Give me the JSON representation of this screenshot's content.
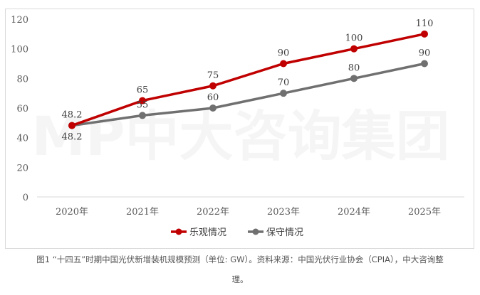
{
  "chart_data": {
    "type": "line",
    "categories": [
      "2020年",
      "2021年",
      "2022年",
      "2023年",
      "2024年",
      "2025年"
    ],
    "series": [
      {
        "name": "乐观情况",
        "color": "#c00000",
        "values": [
          48.2,
          65,
          75,
          90,
          100,
          110
        ]
      },
      {
        "name": "保守情况",
        "color": "#707070",
        "values": [
          48.2,
          55,
          60,
          70,
          80,
          90
        ]
      }
    ],
    "yticks": [
      0,
      20,
      40,
      60,
      80,
      100,
      120
    ],
    "ylim": [
      0,
      120
    ],
    "grid": false,
    "legend": "bottom",
    "watermark": "MP中大咨询集团"
  },
  "caption": {
    "line1": "图1 “十四五”时期中国光伏新增装机规模预测（单位: GW）。资料来源：中国光伏行业协会（CPIA），中大咨询整",
    "line2": "理。"
  }
}
